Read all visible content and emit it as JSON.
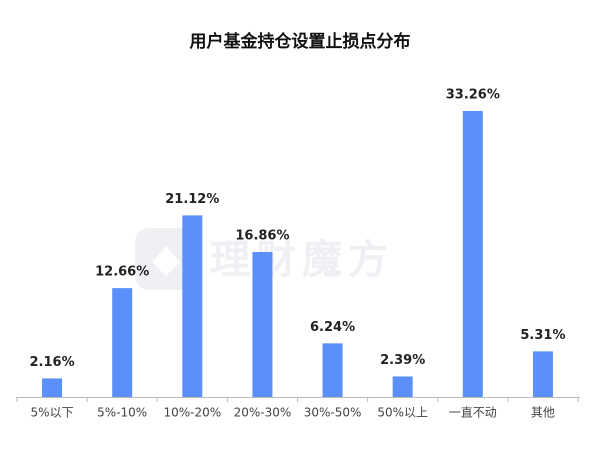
{
  "chart_data": {
    "type": "bar",
    "title": "用户基金持仓设置止损点分布",
    "watermark": "理财魔方",
    "categories": [
      "5%以下",
      "5%-10%",
      "10%-20%",
      "20%-30%",
      "30%-50%",
      "50%以上",
      "一直不动",
      "其他"
    ],
    "values": [
      2.16,
      12.66,
      21.12,
      16.86,
      6.24,
      2.39,
      33.26,
      5.31
    ],
    "value_labels": [
      "2.16%",
      "12.66%",
      "21.12%",
      "16.86%",
      "6.24%",
      "2.39%",
      "33.26%",
      "5.31%"
    ],
    "color": "#5b8ff9"
  }
}
